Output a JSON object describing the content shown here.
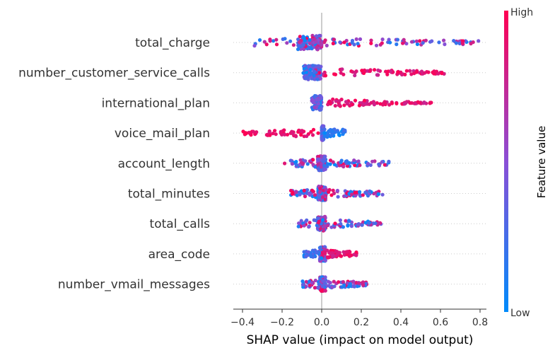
{
  "chart_data": {
    "type": "scatter",
    "subtype": "shap-beeswarm",
    "xlabel": "SHAP value (impact on model output)",
    "xlim": [
      -0.45,
      0.83
    ],
    "xticks": [
      "−0.4",
      "−0.2",
      "0.0",
      "0.2",
      "0.4",
      "0.6",
      "0.8"
    ],
    "xtick_values": [
      -0.4,
      -0.2,
      0.0,
      0.2,
      0.4,
      0.6,
      0.8
    ],
    "colorbar": {
      "high_label": "High",
      "low_label": "Low",
      "title": "Feature value",
      "color_low": "#008bfb",
      "color_high": "#ff0052"
    },
    "features": [
      {
        "name": "total_charge",
        "min": -0.35,
        "max": 0.8,
        "center": -0.05,
        "core": [
          -0.12,
          0.0
        ],
        "spread": [
          -0.35,
          0.8
        ],
        "low_color_side": "center",
        "high_color_side": "both"
      },
      {
        "name": "number_customer_service_calls",
        "min": -0.12,
        "max": 0.63,
        "center": -0.03,
        "core": [
          -0.09,
          0.0
        ],
        "spread": [
          -0.12,
          0.63
        ],
        "low_color_side": "left",
        "high_color_side": "right"
      },
      {
        "name": "international_plan",
        "min": -0.05,
        "max": 0.56,
        "center": -0.01,
        "core": [
          -0.05,
          0.0
        ],
        "spread": [
          0.03,
          0.56
        ],
        "low_color_side": "left",
        "high_color_side": "right"
      },
      {
        "name": "voice_mail_plan",
        "min": -0.4,
        "max": 0.13,
        "center": 0.0,
        "core": [
          0.0,
          0.01
        ],
        "spread": [
          -0.4,
          0.13
        ],
        "low_color_side": "right",
        "high_color_side": "left"
      },
      {
        "name": "account_length",
        "min": -0.2,
        "max": 0.34,
        "center": 0.0,
        "core": [
          -0.02,
          0.02
        ],
        "spread": [
          -0.2,
          0.34
        ],
        "low_color_side": "both",
        "high_color_side": "both"
      },
      {
        "name": "total_minutes",
        "min": -0.16,
        "max": 0.32,
        "center": 0.0,
        "core": [
          -0.02,
          0.02
        ],
        "spread": [
          -0.16,
          0.32
        ],
        "low_color_side": "both",
        "high_color_side": "both"
      },
      {
        "name": "total_calls",
        "min": -0.12,
        "max": 0.3,
        "center": 0.0,
        "core": [
          -0.02,
          0.02
        ],
        "spread": [
          -0.12,
          0.3
        ],
        "low_color_side": "both",
        "high_color_side": "both"
      },
      {
        "name": "area_code",
        "min": -0.09,
        "max": 0.18,
        "center": 0.0,
        "core": [
          -0.01,
          0.02
        ],
        "spread": [
          -0.09,
          0.18
        ],
        "low_color_side": "both",
        "high_color_side": "right"
      },
      {
        "name": "number_vmail_messages",
        "min": -0.1,
        "max": 0.24,
        "center": 0.0,
        "core": [
          -0.01,
          0.02
        ],
        "spread": [
          -0.1,
          0.24
        ],
        "low_color_side": "center",
        "high_color_side": "both"
      }
    ]
  }
}
